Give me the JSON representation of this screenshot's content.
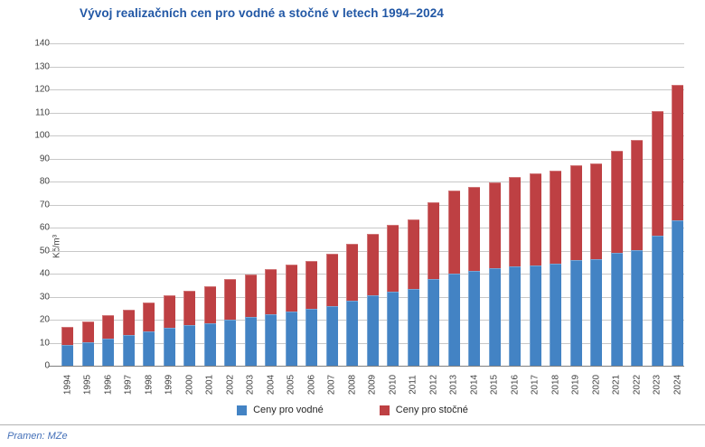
{
  "title": "Vývoj realizačních cen pro vodné a stočné v letech 1994–2024",
  "source_note": "Pramen: MZe",
  "y_axis_label": "Kč/m³",
  "legend": {
    "vodne_label": "Ceny pro vodné",
    "stocne_label": "Ceny pro stočné"
  },
  "colors": {
    "vodne": "#4383C4",
    "stocne": "#BE4043",
    "title_text": "#2157A5",
    "source_text": "#4470B8",
    "grid_line": "#C8C8C8",
    "axis_line": "#7F7F7F",
    "tick_text": "#3F3F3F"
  },
  "chart_data": {
    "type": "bar",
    "stacked": true,
    "title": "Vývoj realizačních cen pro vodné a stočné v letech 1994–2024",
    "ylabel": "Kč/m³",
    "ylim": [
      0,
      140
    ],
    "ytick_step": 10,
    "grid": true,
    "legend_position": "bottom",
    "categories": [
      "1994",
      "1995",
      "1996",
      "1997",
      "1998",
      "1999",
      "2000",
      "2001",
      "2002",
      "2003",
      "2004",
      "2005",
      "2006",
      "2007",
      "2008",
      "2009",
      "2010",
      "2011",
      "2012",
      "2013",
      "2014",
      "2015",
      "2016",
      "2017",
      "2018",
      "2019",
      "2020",
      "2021",
      "2022",
      "2023",
      "2024"
    ],
    "series": [
      {
        "name": "Ceny pro vodné",
        "color": "#4383C4",
        "values": [
          9.1,
          10.3,
          11.8,
          13.2,
          14.8,
          16.4,
          17.6,
          18.5,
          20.0,
          21.2,
          22.3,
          23.5,
          24.7,
          26.0,
          28.1,
          30.4,
          32.2,
          33.5,
          37.5,
          40.0,
          41.2,
          42.2,
          43.0,
          43.6,
          44.4,
          45.8,
          46.3,
          49.0,
          50.3,
          56.5,
          63.0
        ]
      },
      {
        "name": "Ceny pro stočné",
        "color": "#BE4043",
        "values": [
          7.6,
          8.9,
          10.0,
          11.0,
          12.6,
          14.1,
          15.1,
          16.0,
          17.5,
          18.6,
          19.5,
          20.3,
          20.8,
          22.5,
          24.9,
          26.9,
          28.8,
          30.0,
          33.5,
          36.0,
          36.3,
          37.6,
          39.0,
          40.0,
          40.2,
          41.2,
          41.7,
          44.2,
          47.7,
          54.0,
          59.0
        ]
      }
    ]
  }
}
